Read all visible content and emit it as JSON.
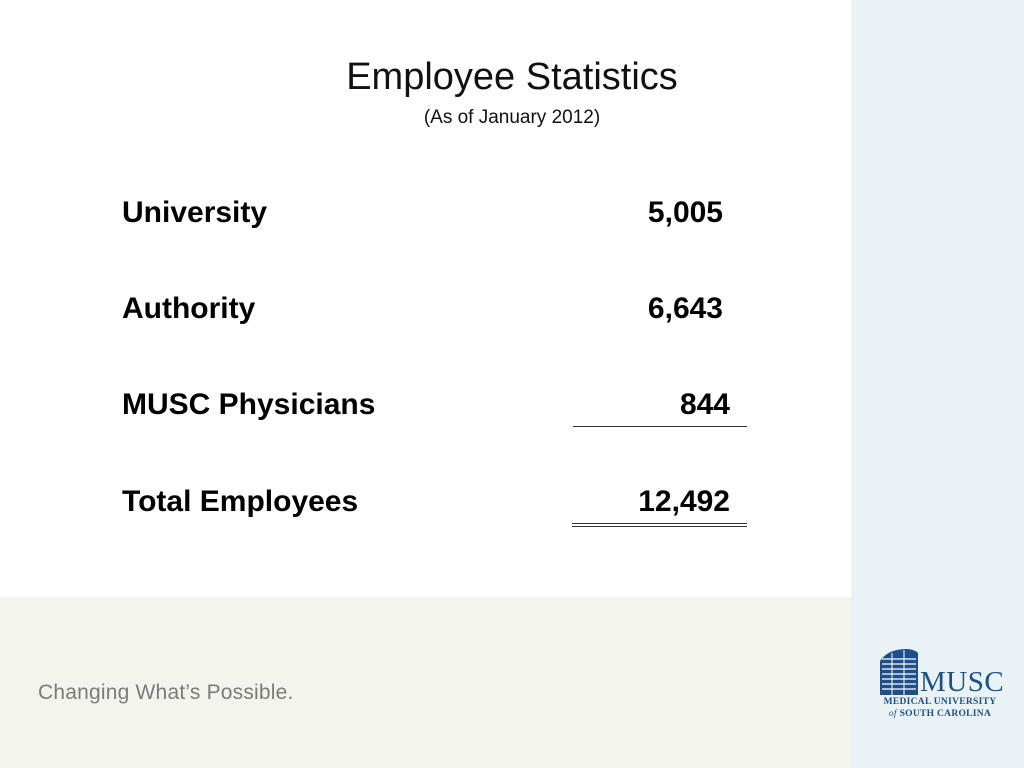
{
  "slide": {
    "title": "Employee Statistics",
    "subtitle": "(As of January 2012)"
  },
  "stats": [
    {
      "label": "University",
      "value": "5,005"
    },
    {
      "label": "Authority",
      "value": "6,643"
    },
    {
      "label": "MUSC Physicians",
      "value": "844"
    },
    {
      "label": "Total Employees",
      "value": "12,492"
    }
  ],
  "footer": {
    "tagline": "Changing What’s Possible."
  },
  "logo": {
    "wordmark": "MUSC",
    "line1": "MEDICAL UNIVERSITY",
    "line2_of": "of",
    "line2_rest": "SOUTH CAROLINA",
    "color": "#1f4f8a"
  },
  "theme": {
    "side_panel_color": "#e9f3f5",
    "footer_band_color": "#f3f4ec",
    "tagline_color": "#7b7b7b"
  }
}
